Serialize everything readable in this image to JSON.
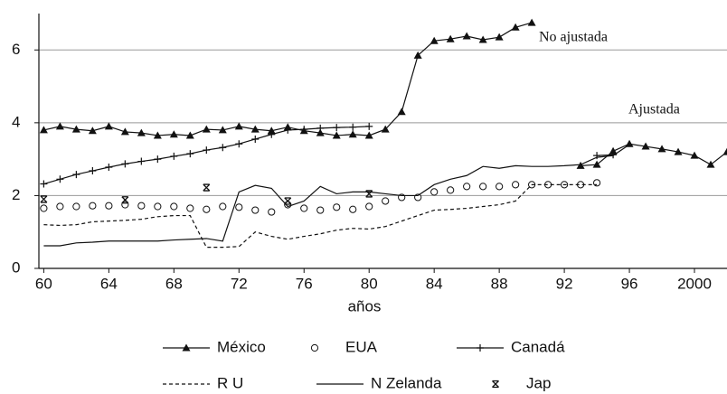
{
  "chart_data": {
    "type": "line",
    "x_label": "años",
    "annotations": [
      "No ajustada",
      "Ajustada"
    ],
    "xlim": [
      1959.7,
      2002
    ],
    "ylim": [
      0,
      7
    ],
    "xticks": [
      {
        "value": 1960,
        "label": "60"
      },
      {
        "value": 1964,
        "label": "64"
      },
      {
        "value": 1968,
        "label": "68"
      },
      {
        "value": 1972,
        "label": "72"
      },
      {
        "value": 1976,
        "label": "76"
      },
      {
        "value": 1980,
        "label": "80"
      },
      {
        "value": 1984,
        "label": "84"
      },
      {
        "value": 1988,
        "label": "88"
      },
      {
        "value": 1992,
        "label": "92"
      },
      {
        "value": 1996,
        "label": "96"
      },
      2000
    ],
    "yticks": [
      0,
      2,
      4,
      6
    ],
    "grid": true,
    "series": [
      {
        "name": "México",
        "color": "#111111",
        "marker": "triangle",
        "line": "solid",
        "x": [
          1960,
          1961,
          1962,
          1963,
          1964,
          1965,
          1966,
          1967,
          1968,
          1969,
          1970,
          1971,
          1972,
          1973,
          1974,
          1975,
          1976,
          1977,
          1978,
          1979,
          1980,
          1981,
          1982,
          1983,
          1984,
          1985,
          1986,
          1987,
          1988,
          1989,
          1990,
          1991,
          1992,
          1993,
          1994,
          1995,
          1996,
          1997,
          1998,
          1999,
          2000,
          2001,
          2002
        ],
        "values": [
          3.8,
          3.9,
          3.82,
          3.78,
          3.9,
          3.75,
          3.72,
          3.65,
          3.68,
          3.65,
          3.82,
          3.8,
          3.9,
          3.82,
          3.78,
          3.88,
          3.78,
          3.72,
          3.65,
          3.68,
          3.65,
          3.82,
          4.3,
          5.85,
          6.25,
          6.3,
          6.38,
          6.28,
          6.35,
          6.62,
          6.75,
          null,
          null,
          2.82,
          2.85,
          3.22,
          3.42,
          3.35,
          3.28,
          3.2,
          3.1,
          2.85,
          3.2
        ]
      },
      {
        "name": "EUA",
        "color": "#111111",
        "marker": "circle",
        "line": "none",
        "x": [
          1960,
          1961,
          1962,
          1963,
          1964,
          1965,
          1966,
          1967,
          1968,
          1969,
          1970,
          1971,
          1972,
          1973,
          1974,
          1975,
          1976,
          1977,
          1978,
          1979,
          1980,
          1981,
          1982,
          1983,
          1984,
          1985,
          1986,
          1987,
          1988,
          1989,
          1990,
          1991,
          1992,
          1993,
          1994
        ],
        "values": [
          1.65,
          1.7,
          1.7,
          1.72,
          1.72,
          1.75,
          1.72,
          1.7,
          1.7,
          1.65,
          1.62,
          1.7,
          1.68,
          1.6,
          1.55,
          1.75,
          1.65,
          1.6,
          1.68,
          1.62,
          1.7,
          1.85,
          1.95,
          1.95,
          2.1,
          2.15,
          2.25,
          2.25,
          2.25,
          2.3,
          2.3,
          2.3,
          2.3,
          2.3,
          2.35
        ]
      },
      {
        "name": "Canadá",
        "color": "#111111",
        "marker": "plus",
        "line": "solid",
        "x": [
          1960,
          1961,
          1962,
          1963,
          1964,
          1965,
          1966,
          1967,
          1968,
          1969,
          1970,
          1971,
          1972,
          1973,
          1974,
          1975,
          1976,
          1977,
          1978,
          1979,
          1980,
          1981,
          1982,
          1983,
          1984,
          1985,
          1986,
          1987,
          1988,
          1989,
          1990,
          1991,
          1992,
          1993,
          1994,
          1995
        ],
        "values": [
          2.32,
          2.45,
          2.58,
          2.68,
          2.78,
          2.87,
          2.94,
          3.0,
          3.08,
          3.15,
          3.25,
          3.32,
          3.42,
          3.55,
          3.68,
          3.8,
          3.82,
          3.85,
          3.87,
          3.88,
          3.9,
          null,
          null,
          null,
          null,
          null,
          null,
          null,
          null,
          null,
          null,
          null,
          null,
          null,
          3.1,
          3.12
        ]
      },
      {
        "name": "R U",
        "color": "#111111",
        "marker": "none",
        "line": "dashed",
        "x": [
          1960,
          1961,
          1962,
          1963,
          1964,
          1965,
          1966,
          1967,
          1968,
          1969,
          1970,
          1971,
          1972,
          1973,
          1974,
          1975,
          1976,
          1977,
          1978,
          1979,
          1980,
          1981,
          1982,
          1983,
          1984,
          1985,
          1986,
          1987,
          1988,
          1989,
          1990,
          1991,
          1992,
          1993,
          1994
        ],
        "values": [
          1.2,
          1.18,
          1.2,
          1.28,
          1.3,
          1.32,
          1.35,
          1.42,
          1.45,
          1.45,
          0.58,
          0.58,
          0.6,
          1.0,
          0.88,
          0.8,
          0.88,
          0.95,
          1.05,
          1.1,
          1.08,
          1.15,
          1.3,
          1.45,
          1.6,
          1.62,
          1.65,
          1.7,
          1.75,
          1.85,
          2.3,
          2.3,
          2.3,
          2.3,
          2.3
        ]
      },
      {
        "name": "N Zelanda",
        "color": "#111111",
        "marker": "none",
        "line": "solid",
        "x": [
          1960,
          1961,
          1962,
          1963,
          1964,
          1965,
          1966,
          1967,
          1968,
          1969,
          1970,
          1971,
          1972,
          1973,
          1974,
          1975,
          1976,
          1977,
          1978,
          1979,
          1980,
          1981,
          1982,
          1983,
          1984,
          1985,
          1986,
          1987,
          1988,
          1989,
          1990,
          1991,
          1992,
          1993,
          1994,
          1995,
          1996
        ],
        "values": [
          0.62,
          0.62,
          0.7,
          0.72,
          0.75,
          0.75,
          0.75,
          0.75,
          0.78,
          0.8,
          0.82,
          0.75,
          2.1,
          2.28,
          2.2,
          1.7,
          1.85,
          2.25,
          2.05,
          2.1,
          2.1,
          2.05,
          2.0,
          2.0,
          2.3,
          2.45,
          2.55,
          2.8,
          2.75,
          2.82,
          2.8,
          2.8,
          2.82,
          2.85,
          3.05,
          3.1,
          3.4
        ]
      },
      {
        "name": "Jap",
        "color": "#111111",
        "marker": "bowtie",
        "line": "none",
        "x": [
          1960,
          1965,
          1970,
          1975,
          1980
        ],
        "values": [
          1.9,
          1.88,
          2.22,
          1.85,
          2.05
        ]
      }
    ]
  }
}
